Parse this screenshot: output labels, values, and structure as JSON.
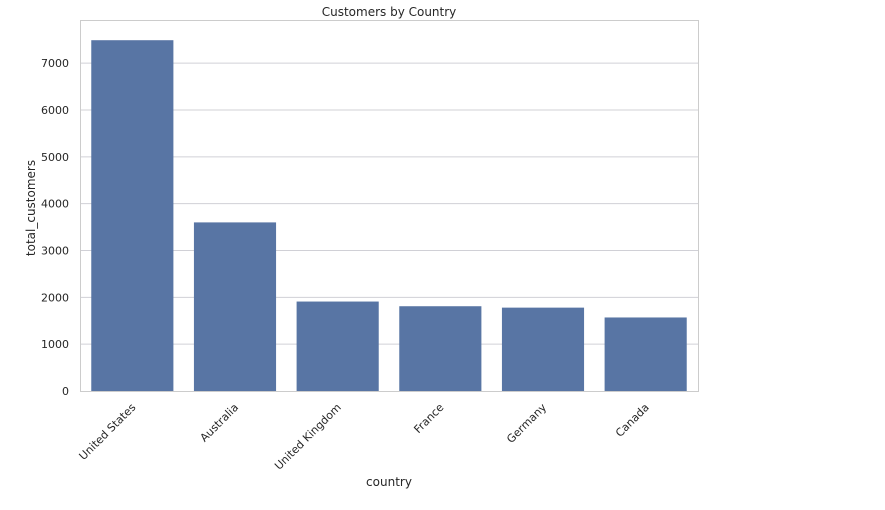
{
  "chart_data": {
    "type": "bar",
    "title": "Customers by Country",
    "xlabel": "country",
    "ylabel": "total_customers",
    "categories": [
      "United States",
      "Australia",
      "United Kingdom",
      "France",
      "Germany",
      "Canada"
    ],
    "values": [
      7490,
      3600,
      1910,
      1810,
      1780,
      1570
    ],
    "ylim": [
      0,
      7900
    ],
    "yticks": [
      0,
      1000,
      2000,
      3000,
      4000,
      5000,
      6000,
      7000
    ],
    "grid": "horizontal",
    "bar_color": "#5875a4",
    "grid_color": "#d0d0d6",
    "frame_color": "#cccccc"
  }
}
